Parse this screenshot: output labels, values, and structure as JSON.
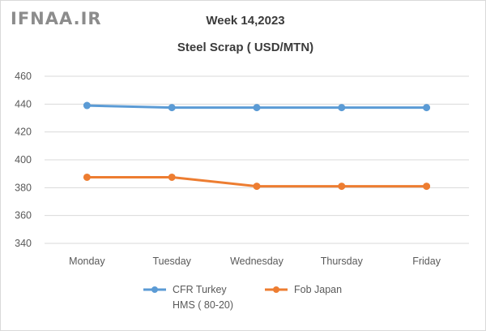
{
  "watermark": "IFNAA.IR",
  "chart_data": {
    "type": "line",
    "title": "Week 14,2023",
    "subtitle": "Steel Scrap ( USD/MTN)",
    "categories": [
      "Monday",
      "Tuesday",
      "Wednesday",
      "Thursday",
      "Friday"
    ],
    "ylim": [
      340,
      460
    ],
    "yticks": [
      340,
      360,
      380,
      400,
      420,
      440,
      460
    ],
    "grid": true,
    "legend_position": "bottom",
    "series": [
      {
        "name": "CFR Turkey",
        "name_line2": "HMS ( 80-20)",
        "color": "#5b9bd5",
        "values": [
          439,
          437.5,
          437.5,
          437.5,
          437.5
        ]
      },
      {
        "name": "Fob Japan",
        "name_line2": "",
        "color": "#ed7d31",
        "values": [
          387.5,
          387.5,
          381,
          381,
          381
        ]
      }
    ]
  }
}
